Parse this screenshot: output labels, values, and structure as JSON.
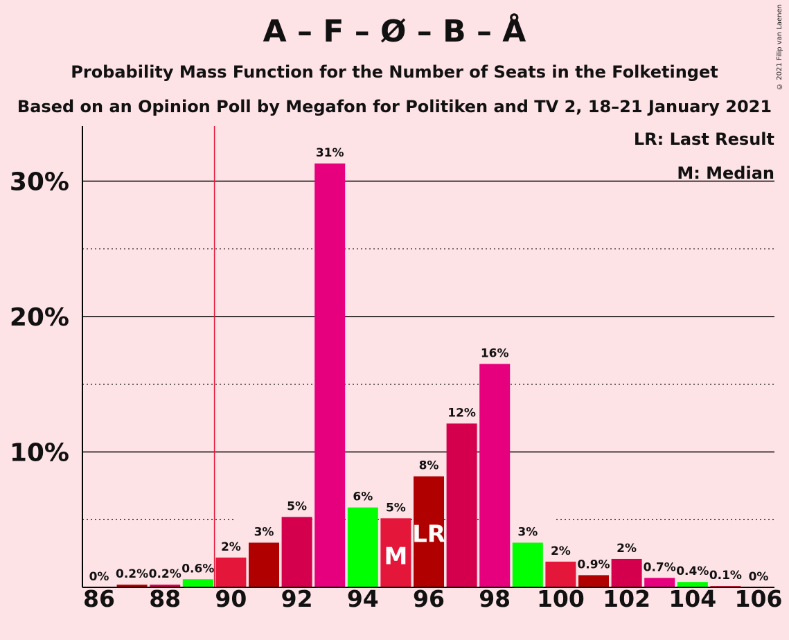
{
  "title": "A – F – Ø – B – Å",
  "subtitle": "Probability Mass Function for the Number of Seats in the Folketinget",
  "subtitle2": "Based on an Opinion Poll by Megafon for Politiken and TV 2, 18–21 January 2021",
  "copyright": "© 2021 Filip van Laenen",
  "legend": {
    "last_result": "LR: Last Result",
    "median": "M: Median"
  },
  "chart_data": {
    "type": "bar",
    "x": [
      86,
      87,
      88,
      89,
      90,
      91,
      92,
      93,
      94,
      95,
      96,
      97,
      98,
      99,
      100,
      101,
      102,
      103,
      104,
      105,
      106
    ],
    "values": [
      0,
      0.2,
      0.2,
      0.6,
      2.2,
      3.3,
      5.2,
      31.3,
      5.9,
      5.1,
      8.2,
      12.1,
      16.5,
      3.3,
      1.9,
      0.9,
      2.1,
      0.7,
      0.4,
      0.1,
      0
    ],
    "labels": [
      "0%",
      "0.2%",
      "0.2%",
      "0.6%",
      "2%",
      "3%",
      "5%",
      "31%",
      "6%",
      "5%",
      "8%",
      "12%",
      "16%",
      "3%",
      "2%",
      "0.9%",
      "2%",
      "0.7%",
      "0.4%",
      "0.1%",
      "0%"
    ],
    "colors": [
      "#e6007e",
      "#b10000",
      "#d4004d",
      "#00ff00",
      "#e4173a",
      "#b10000",
      "#d4004d",
      "#e6007e",
      "#00ff00",
      "#e4173a",
      "#b10000",
      "#d4004d",
      "#e6007e",
      "#00ff00",
      "#e4173a",
      "#b10000",
      "#d4004d",
      "#e6007e",
      "#00ff00",
      "#e4173a",
      "#b10000"
    ],
    "xtick_labels": [
      "86",
      "88",
      "90",
      "92",
      "94",
      "96",
      "98",
      "100",
      "102",
      "104",
      "106"
    ],
    "ytick_labels": [
      "10%",
      "20%",
      "30%"
    ],
    "yticks": [
      10,
      20,
      30
    ],
    "ylim": [
      0,
      34
    ],
    "majority_line_x": 89.5,
    "median_x": 95,
    "median_label": "M",
    "last_result_x": 96,
    "last_result_label": "LR",
    "grid": true
  }
}
